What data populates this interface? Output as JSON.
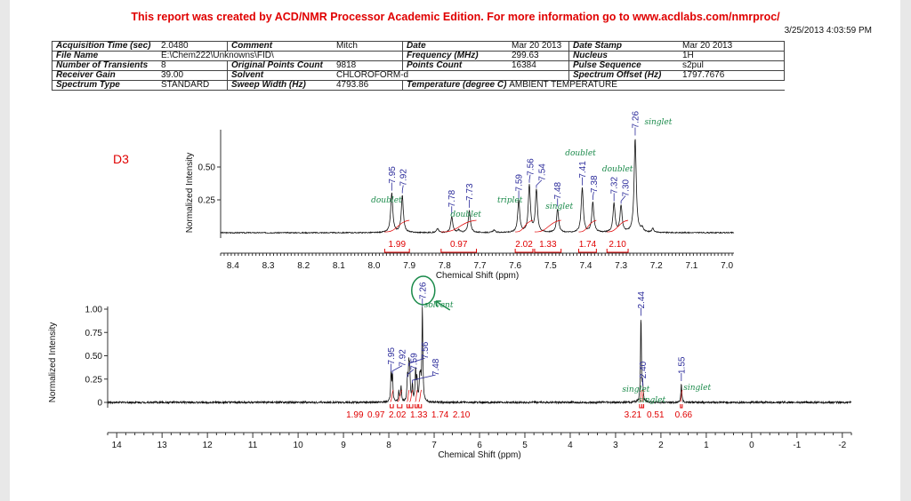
{
  "header": {
    "banner": "This report was created by ACD/NMR Processor Academic Edition. For more information go to www.acdlabs.com/nmrproc/",
    "timestamp": "3/25/2013 4:03:59 PM"
  },
  "params": [
    [
      [
        "Acquisition Time (sec)",
        "2.0480"
      ],
      [
        "Comment",
        "Mitch"
      ],
      [
        "Date",
        "Mar 20 2013"
      ],
      [
        "Date Stamp",
        "Mar 20 2013"
      ]
    ],
    [
      [
        "File Name",
        "E:\\Chem222\\Unknowns\\FID\\"
      ],
      [
        "",
        ""
      ],
      [
        "Frequency (MHz)",
        "299.63"
      ],
      [
        "Nucleus",
        "1H"
      ]
    ],
    [
      [
        "Number of Transients",
        "8"
      ],
      [
        "Original Points Count",
        "9818"
      ],
      [
        "Points Count",
        "16384"
      ],
      [
        "Pulse Sequence",
        "s2pul"
      ]
    ],
    [
      [
        "Receiver Gain",
        "39.00"
      ],
      [
        "Solvent",
        "CHLOROFORM-d"
      ],
      [
        "",
        ""
      ],
      [
        "Spectrum Offset (Hz)",
        "1797.7676"
      ]
    ],
    [
      [
        "Spectrum Type",
        "STANDARD"
      ],
      [
        "Sweep Width (Hz)",
        "4793.86"
      ],
      [
        "Temperature (degree C)",
        "AMBIENT TEMPERATURE"
      ],
      [
        "",
        ""
      ]
    ]
  ],
  "sample_label": "D3",
  "colors": {
    "banner": "#e00000",
    "trace": "#111111",
    "peak_label": "#2a2a9a",
    "integral": "#e00000",
    "handwriting": "#1a8a4a"
  },
  "chart_data": [
    {
      "type": "line",
      "title": "",
      "xlabel": "Chemical Shift (ppm)",
      "ylabel": "Normalized Intensity",
      "xlim": [
        8.435,
        6.98
      ],
      "x_reversed": true,
      "ylim": [
        0,
        0.8
      ],
      "xticks": [
        "8.4",
        "8.3",
        "8.2",
        "8.1",
        "8.0",
        "7.9",
        "7.8",
        "7.7",
        "7.6",
        "7.5",
        "7.4",
        "7.3",
        "7.2",
        "7.1",
        "7.0"
      ],
      "yticks": [
        "0.25",
        "0.50"
      ],
      "peaks": [
        {
          "ppm": 7.95,
          "label": "7.95",
          "height": 0.3
        },
        {
          "ppm": 7.92,
          "label": "7.92",
          "height": 0.28
        },
        {
          "ppm": 7.78,
          "label": "7.78",
          "height": 0.12
        },
        {
          "ppm": 7.73,
          "label": "7.73",
          "height": 0.17
        },
        {
          "ppm": 7.59,
          "label": "7.59",
          "height": 0.24
        },
        {
          "ppm": 7.56,
          "label": "7.56",
          "height": 0.36
        },
        {
          "ppm": 7.54,
          "label": "7.54",
          "height": 0.32
        },
        {
          "ppm": 7.48,
          "label": "7.48",
          "height": 0.18
        },
        {
          "ppm": 7.41,
          "label": "7.41",
          "height": 0.34
        },
        {
          "ppm": 7.38,
          "label": "7.38",
          "height": 0.23
        },
        {
          "ppm": 7.32,
          "label": "7.32",
          "height": 0.22
        },
        {
          "ppm": 7.3,
          "label": "7.30",
          "height": 0.2
        },
        {
          "ppm": 7.26,
          "label": "7.26",
          "height": 0.72
        }
      ],
      "minor_peaks": [
        {
          "ppm": 7.82,
          "height": 0.03
        },
        {
          "ppm": 7.76,
          "height": 0.02
        },
        {
          "ppm": 7.66,
          "height": 0.02
        },
        {
          "ppm": 7.24,
          "height": 0.03
        },
        {
          "ppm": 7.21,
          "height": 0.03
        }
      ],
      "integrals": [
        {
          "from": 7.97,
          "to": 7.9,
          "value": "1.99"
        },
        {
          "from": 7.81,
          "to": 7.71,
          "value": "0.97"
        },
        {
          "from": 7.6,
          "to": 7.55,
          "value": "2.02"
        },
        {
          "from": 7.545,
          "to": 7.47,
          "value": "1.33"
        },
        {
          "from": 7.42,
          "to": 7.37,
          "value": "1.74"
        },
        {
          "from": 7.34,
          "to": 7.28,
          "value": "2.10"
        }
      ],
      "annotations": [
        {
          "ppm": 7.965,
          "text": "doublet"
        },
        {
          "ppm": 7.74,
          "text": "doublet"
        },
        {
          "ppm": 7.615,
          "text": "triplet"
        },
        {
          "ppm": 7.475,
          "text": "singlet"
        },
        {
          "ppm": 7.415,
          "text": "doublet"
        },
        {
          "ppm": 7.31,
          "text": "doublet"
        },
        {
          "ppm": 7.245,
          "text": "singlet"
        }
      ]
    },
    {
      "type": "line",
      "title": "",
      "xlabel": "Chemical Shift (ppm)",
      "ylabel": "Normalized Intensity",
      "xlim": [
        14.2,
        -2.2
      ],
      "x_reversed": true,
      "ylim": [
        0,
        1.05
      ],
      "xticks": [
        "14",
        "13",
        "12",
        "11",
        "10",
        "9",
        "8",
        "7",
        "6",
        "5",
        "4",
        "3",
        "2",
        "1",
        "0",
        "-1",
        "-2"
      ],
      "yticks": [
        "0",
        "0.25",
        "0.50",
        "0.75",
        "1.00"
      ],
      "peaks": [
        {
          "ppm": 7.95,
          "label": "7.95",
          "height": 0.3
        },
        {
          "ppm": 7.92,
          "label": "7.92",
          "height": 0.28
        },
        {
          "ppm": 7.78,
          "label": "",
          "height": 0.12
        },
        {
          "ppm": 7.73,
          "label": "",
          "height": 0.17
        },
        {
          "ppm": 7.59,
          "label": "7.59",
          "height": 0.24
        },
        {
          "ppm": 7.56,
          "label": "7.56",
          "height": 0.36
        },
        {
          "ppm": 7.54,
          "label": "",
          "height": 0.32
        },
        {
          "ppm": 7.48,
          "label": "7.48",
          "height": 0.18
        },
        {
          "ppm": 7.41,
          "label": "",
          "height": 0.34
        },
        {
          "ppm": 7.38,
          "label": "",
          "height": 0.23
        },
        {
          "ppm": 7.32,
          "label": "",
          "height": 0.22
        },
        {
          "ppm": 7.3,
          "label": "",
          "height": 0.2
        },
        {
          "ppm": 7.26,
          "label": "7.26",
          "height": 1.0
        },
        {
          "ppm": 2.44,
          "label": "2.44",
          "height": 0.9
        },
        {
          "ppm": 2.4,
          "label": "2.40",
          "height": 0.15
        },
        {
          "ppm": 1.55,
          "label": "1.55",
          "height": 0.2
        }
      ],
      "minor_peaks": [],
      "integrals": [
        {
          "from": 7.97,
          "to": 7.9,
          "value": "1.99"
        },
        {
          "from": 7.81,
          "to": 7.71,
          "value": "0.97"
        },
        {
          "from": 7.6,
          "to": 7.55,
          "value": "2.02"
        },
        {
          "from": 7.545,
          "to": 7.47,
          "value": "1.33"
        },
        {
          "from": 7.42,
          "to": 7.37,
          "value": "1.74"
        },
        {
          "from": 7.34,
          "to": 7.28,
          "value": "2.10"
        },
        {
          "from": 2.47,
          "to": 2.42,
          "value": "3.21"
        },
        {
          "from": 2.42,
          "to": 2.38,
          "value": "0.51"
        },
        {
          "from": 1.57,
          "to": 1.53,
          "value": "0.66"
        }
      ],
      "annotations": [
        {
          "ppm": 6.9,
          "text": "solvent"
        },
        {
          "ppm": 2.55,
          "text": "singlet"
        },
        {
          "ppm": 2.2,
          "text": "singlet"
        },
        {
          "ppm": 1.2,
          "text": "singlet"
        }
      ]
    }
  ]
}
